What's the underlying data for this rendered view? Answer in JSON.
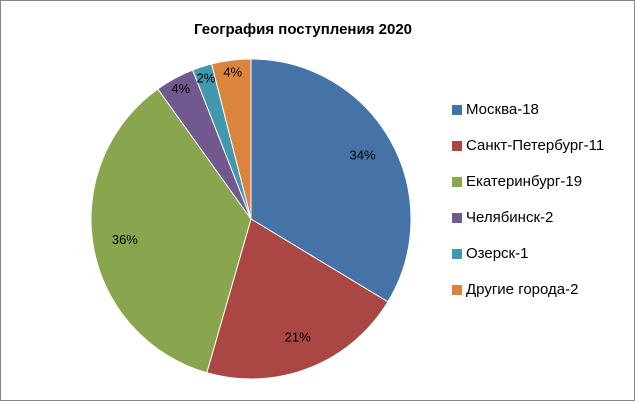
{
  "chart_data": {
    "type": "pie",
    "title": "География поступления 2020",
    "categories": [
      "Москва-18",
      "Санкт-Петербург-11",
      "Екатеринбург-19",
      "Челябинск-2",
      "Озерск-1",
      "Другие города-2"
    ],
    "values": [
      34,
      21,
      36,
      4,
      2,
      4
    ],
    "value_labels": [
      "34%",
      "21%",
      "36%",
      "4%",
      "2%",
      "4%"
    ],
    "colors": [
      "#4572a7",
      "#aa4643",
      "#89a54e",
      "#71588f",
      "#4198af",
      "#db843d"
    ],
    "legend": "right"
  }
}
